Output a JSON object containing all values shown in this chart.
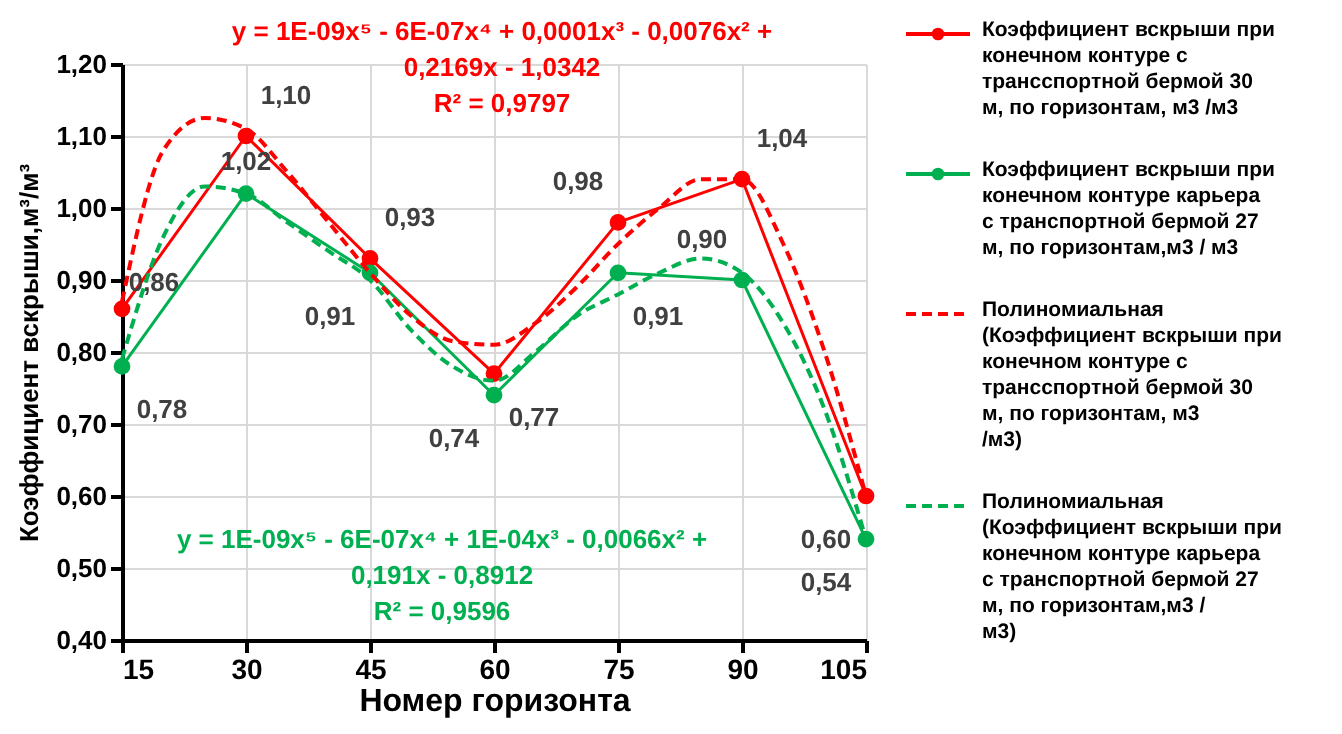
{
  "chart_data": {
    "type": "line",
    "xlabel": "Номер горизонта",
    "ylabel": "Коэффициент вскрыши,м³/м³",
    "x": [
      15,
      30,
      45,
      60,
      75,
      90,
      105
    ],
    "xlim": [
      15,
      105
    ],
    "xticks": [
      15,
      30,
      45,
      60,
      75,
      90,
      105
    ],
    "ylim": [
      0.4,
      1.2
    ],
    "yticks": [
      {
        "value": 0.4,
        "label": "0,40"
      },
      {
        "value": 0.5,
        "label": "0,50"
      },
      {
        "value": 0.6,
        "label": "0,60"
      },
      {
        "value": 0.7,
        "label": "0,70"
      },
      {
        "value": 0.8,
        "label": "0,80"
      },
      {
        "value": 0.9,
        "label": "0,90"
      },
      {
        "value": 1.0,
        "label": "1,00"
      },
      {
        "value": 1.1,
        "label": "1,10"
      },
      {
        "value": 1.2,
        "label": "1,20"
      }
    ],
    "grid": true,
    "legend": "right",
    "marker": "circle",
    "line_style": "solid",
    "series": [
      {
        "name": "Коэффициент вскрыши при конечном контуре с трансспортной бермой 30 м, по горизонтам, м3 /м3",
        "color": "#ff0000",
        "values": [
          0.86,
          1.1,
          0.93,
          0.77,
          0.98,
          1.04,
          0.6
        ],
        "value_labels": [
          "0,86",
          "1,10",
          "0,93",
          "0,77",
          "0,98",
          "1,04",
          "0,60"
        ]
      },
      {
        "name": "Коэффициент вскрыши при конечном контуре карьера с транспортной бермой 27 м, по горизонтам,м3 / м3",
        "color": "#00b050",
        "values": [
          0.78,
          1.02,
          0.91,
          0.74,
          0.91,
          0.9,
          0.54
        ],
        "value_labels": [
          "0,78",
          "1,02",
          "0,91",
          "0,74",
          "0,91",
          "0,90",
          "0,54"
        ]
      },
      {
        "name": "Полиномиальная (Коэффициент вскрыши при конечном контуре с трансспортной бермой 30 м, по горизонтам, м3 /м3)",
        "color": "#ff0000",
        "line_style": "dashed",
        "marker": "none",
        "x": [
          15,
          20,
          25,
          30,
          35,
          40,
          45,
          50,
          55,
          60,
          65,
          70,
          75,
          80,
          85,
          90,
          95,
          100,
          105
        ],
        "values": [
          0.87,
          1.08,
          1.125,
          1.11,
          1.05,
          0.98,
          0.91,
          0.85,
          0.815,
          0.81,
          0.84,
          0.89,
          0.95,
          1.0,
          1.04,
          1.04,
          0.95,
          0.8,
          0.6
        ]
      },
      {
        "name": "Полиномиальная (Коэффициент вскрыши при конечном контуре карьера с транспортной бермой 27 м, по горизонтам,м3 / м3)",
        "color": "#00b050",
        "line_style": "dashed",
        "marker": "none",
        "x": [
          15,
          20,
          25,
          30,
          35,
          40,
          45,
          50,
          55,
          60,
          65,
          70,
          75,
          80,
          85,
          90,
          95,
          100,
          105
        ],
        "values": [
          0.79,
          0.96,
          1.03,
          1.02,
          0.98,
          0.94,
          0.9,
          0.83,
          0.78,
          0.76,
          0.8,
          0.85,
          0.88,
          0.91,
          0.93,
          0.91,
          0.84,
          0.72,
          0.54
        ]
      }
    ],
    "annotations": [
      "y = 1E-09x⁵ - 6E-07x⁴ + 0,0001x³ - 0,0076x² +\n0,2169x - 1,0342\nR² = 0,9797",
      "y = 1E-09x⁵ - 6E-07x⁴ + 1E-04x³ - 0,0066x² +\n0,191x - 0,8912\nR² = 0,9596"
    ]
  }
}
